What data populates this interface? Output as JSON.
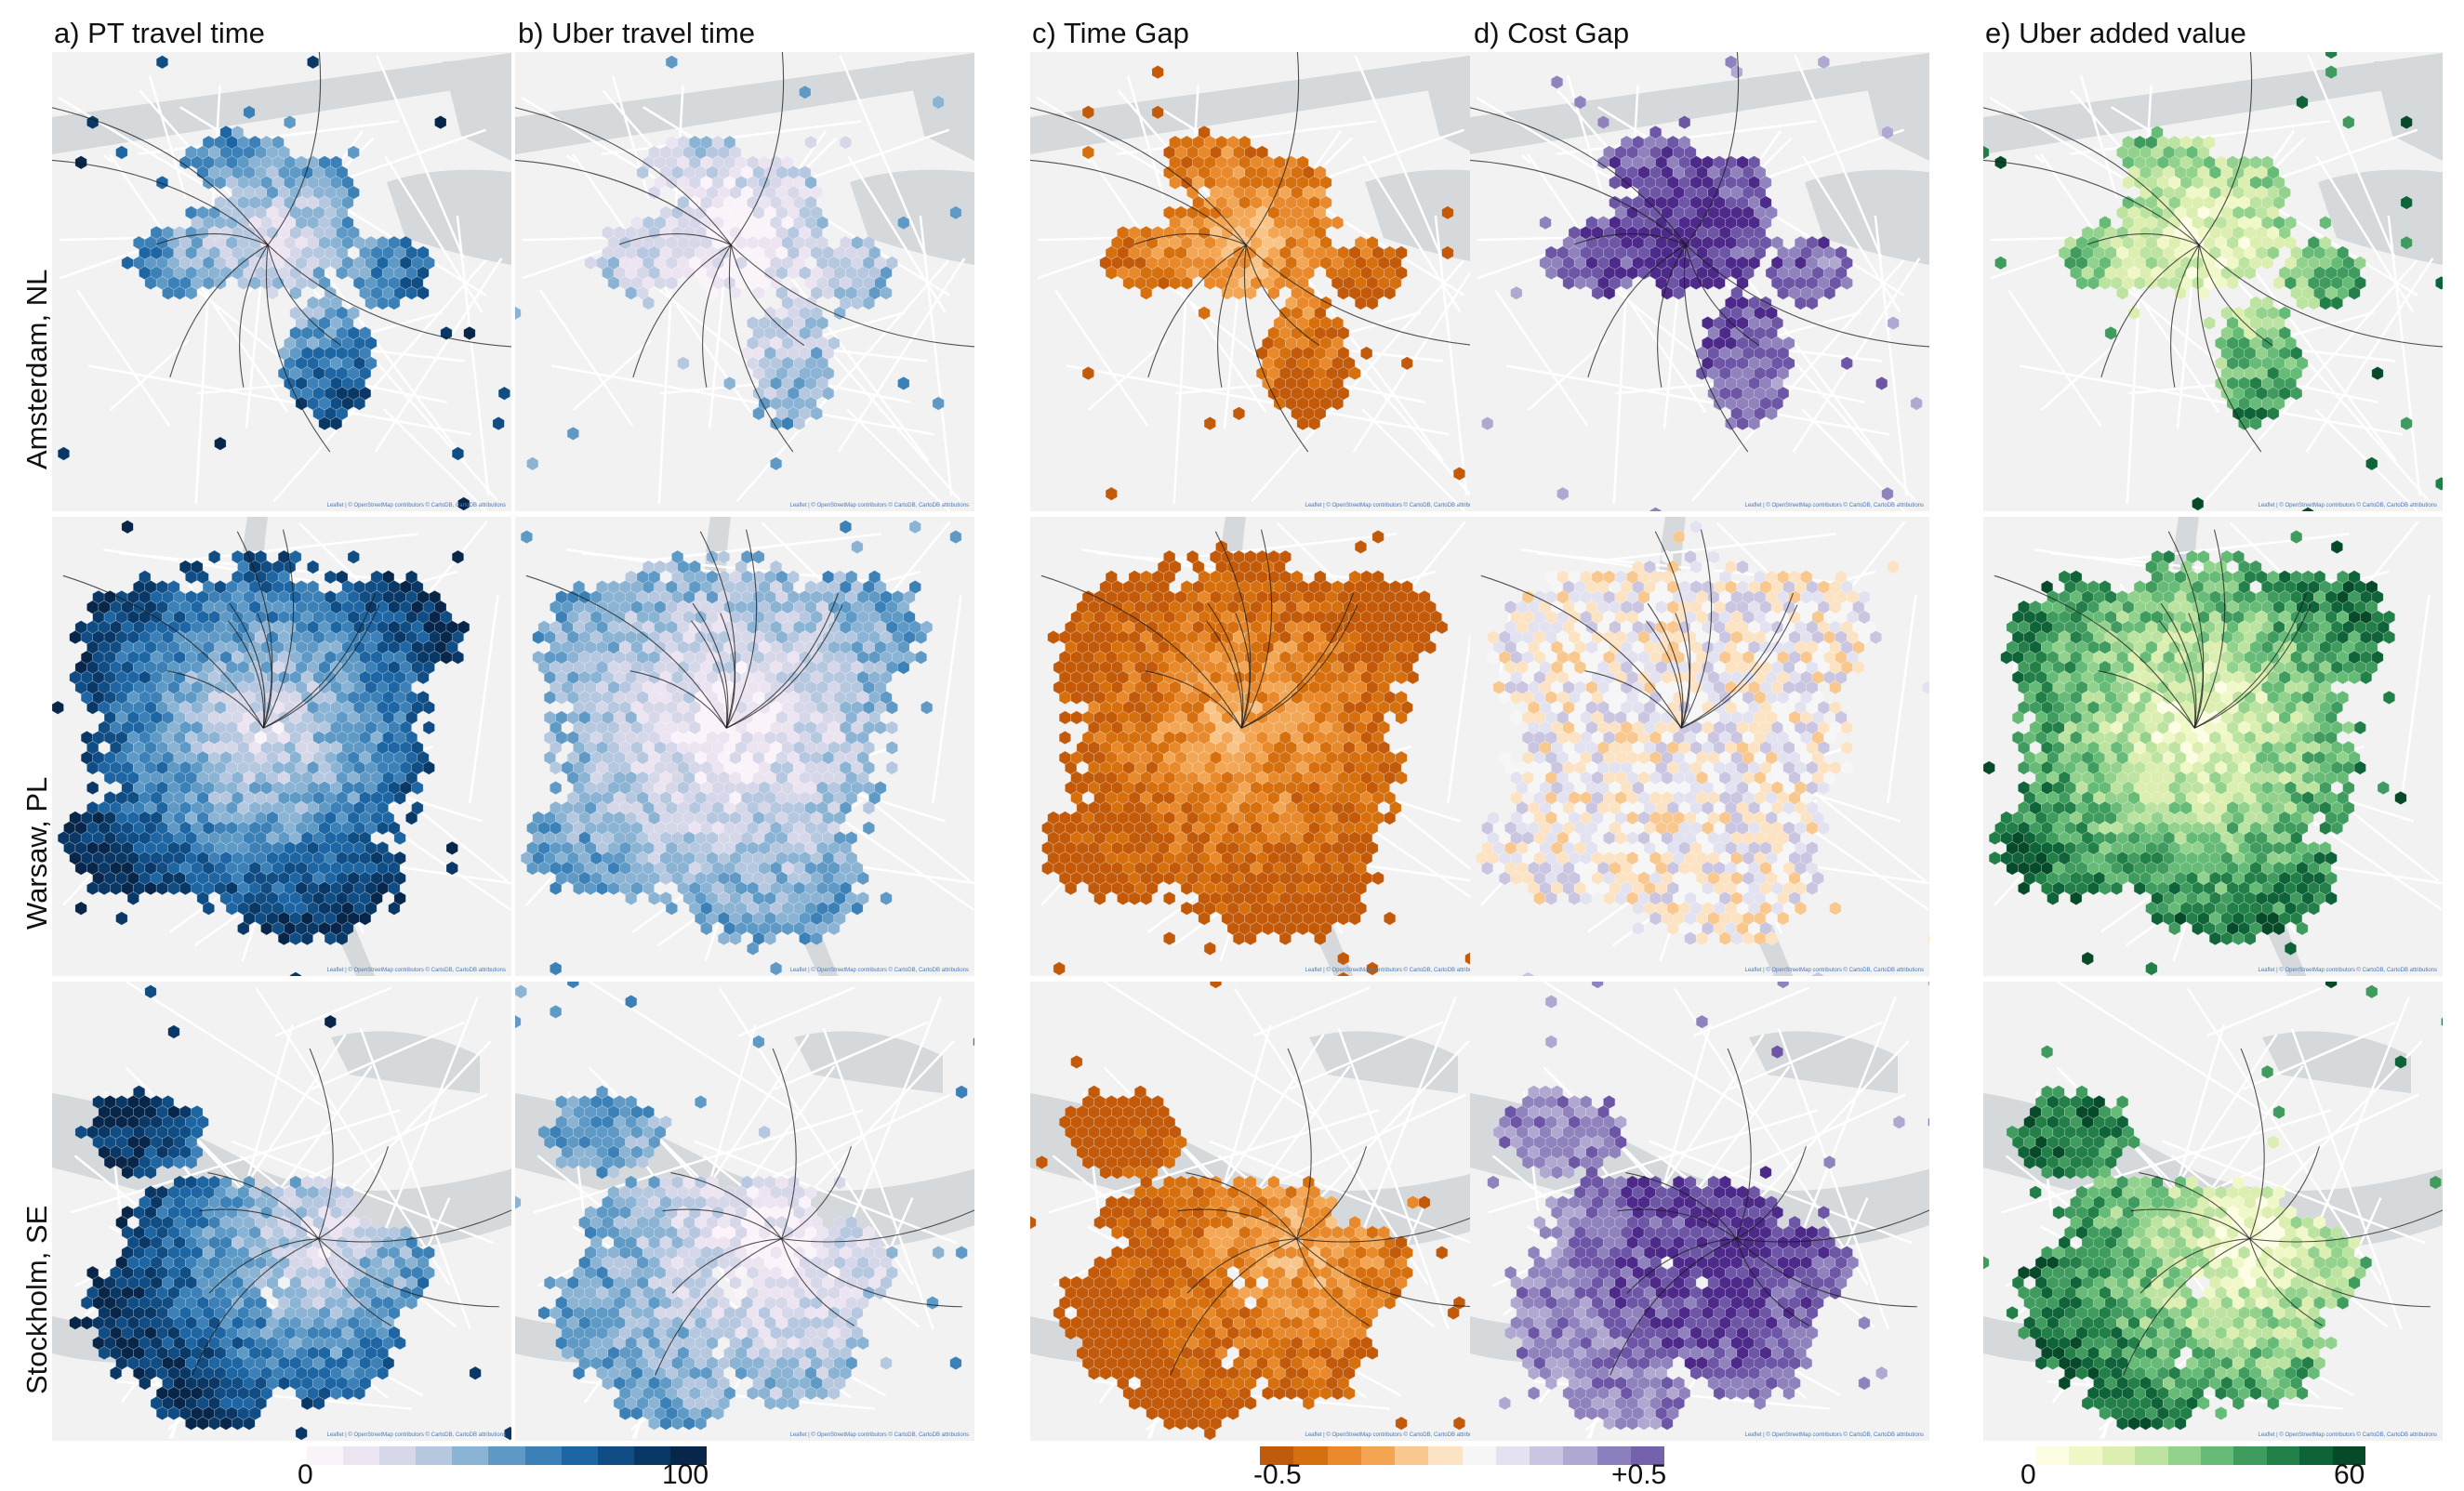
{
  "columns": [
    {
      "key": "pt",
      "title": "a) PT travel time",
      "scale": "blue"
    },
    {
      "key": "uber",
      "title": "b) Uber travel time",
      "scale": "blue"
    },
    {
      "key": "time",
      "title": "c) Time Gap",
      "scale": "orange"
    },
    {
      "key": "cost",
      "title": "d) Cost Gap",
      "scale": "purple"
    },
    {
      "key": "value",
      "title": "e) Uber added value",
      "scale": "green"
    }
  ],
  "rows": [
    {
      "key": "amsterdam",
      "label": "Amsterdam, NL"
    },
    {
      "key": "warsaw",
      "label": "Warsaw, PL"
    },
    {
      "key": "stockholm",
      "label": "Stockholm, SE"
    }
  ],
  "attribution": "Leaflet | © OpenStreetMap contributors © CartoDB, CartoDB attributions",
  "legends": {
    "blue": {
      "min": "0",
      "max": "100"
    },
    "diverging": {
      "min": "-0.5",
      "max": "+0.5"
    },
    "green": {
      "min": "0",
      "max": "60"
    }
  },
  "colors": {
    "blue_scale": [
      "#fbf3fa",
      "#ece4f1",
      "#d6d8ea",
      "#b6c8e0",
      "#8bb3d4",
      "#5f9ac6",
      "#3b80b7",
      "#1d66a3",
      "#0f4d84",
      "#0a3866",
      "#07264a"
    ],
    "orange_scale": [
      "#c35a0a",
      "#d6700f",
      "#e8892b",
      "#f3a653",
      "#f8c487",
      "#fbdfb8",
      "#f7f1ea"
    ],
    "purple_scale": [
      "#f7f1ea",
      "#e6e2f0",
      "#cfc9e3",
      "#b1a8d2",
      "#8f82bd",
      "#6e56a6",
      "#4d2a8a"
    ],
    "diverging_scale": [
      "#c05a0c",
      "#d66f0f",
      "#e9892c",
      "#f3a552",
      "#f9c88f",
      "#fbe3c4",
      "#f6f6f6",
      "#e3e2f0",
      "#cac6e1",
      "#aea8d2",
      "#8c7fbd",
      "#7562ad"
    ],
    "green_scale": [
      "#fdfde3",
      "#f1f8c8",
      "#dcefb0",
      "#bde3a0",
      "#93d28c",
      "#66bb77",
      "#3f9c5e",
      "#237f48",
      "#0f6338",
      "#064a2a"
    ],
    "map_land": "#f1f2f1",
    "map_water": "#d5d9dc",
    "map_roads": "#ffffff",
    "map_rail": "#1a1a1a"
  }
}
